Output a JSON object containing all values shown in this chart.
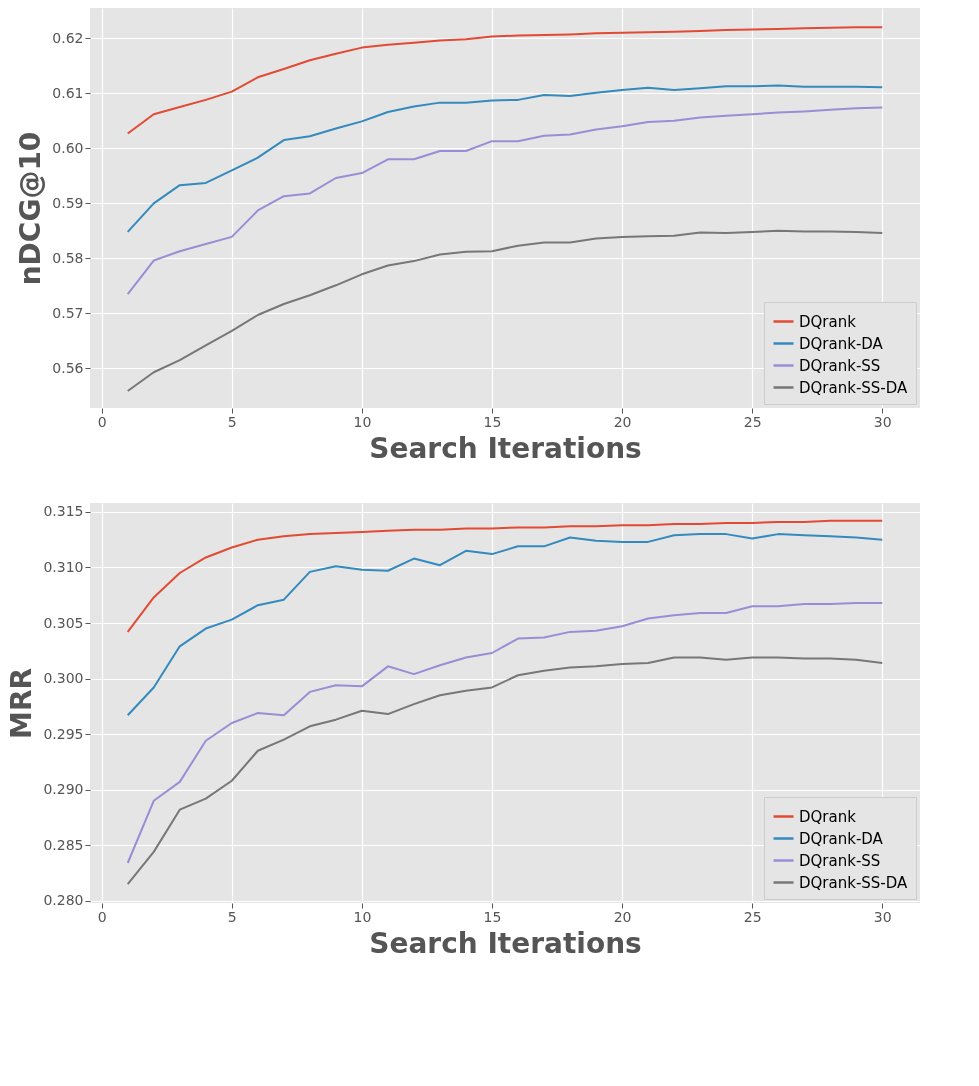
{
  "chart_data": [
    {
      "type": "line",
      "ylabel": "nDCG@10",
      "xlabel": "Search Iterations",
      "legend": "bottom right",
      "grid": true,
      "line_style": "solid",
      "x": [
        1,
        2,
        3,
        4,
        5,
        6,
        7,
        8,
        9,
        10,
        11,
        12,
        13,
        14,
        15,
        16,
        17,
        18,
        19,
        20,
        21,
        22,
        23,
        24,
        25,
        26,
        27,
        28,
        29,
        30
      ],
      "xlim": [
        -0.45,
        31.45
      ],
      "xticks": [
        0,
        5,
        10,
        15,
        20,
        25,
        30
      ],
      "ylim": [
        0.5528,
        0.6255
      ],
      "yticks": [
        {
          "value": 0.56,
          "label": "0.56"
        },
        {
          "value": 0.57,
          "label": "0.57"
        },
        {
          "value": 0.58,
          "label": "0.58"
        },
        {
          "value": 0.59,
          "label": "0.59"
        },
        {
          "value": 0.6,
          "label": "0.60"
        },
        {
          "value": 0.61,
          "label": "0.61"
        },
        {
          "value": 0.62,
          "label": "0.62"
        }
      ],
      "series": [
        {
          "name": "DQrank",
          "color": "#e24a33",
          "values": [
            0.6027,
            0.6062,
            0.6075,
            0.6088,
            0.6103,
            0.6129,
            0.6144,
            0.616,
            0.6172,
            0.6183,
            0.6188,
            0.6192,
            0.6196,
            0.6198,
            0.6203,
            0.6205,
            0.6206,
            0.6207,
            0.6209,
            0.621,
            0.6211,
            0.6212,
            0.6213,
            0.6215,
            0.6216,
            0.6217,
            0.6218,
            0.6219,
            0.622,
            0.622
          ]
        },
        {
          "name": "DQrank-DA",
          "color": "#348abd",
          "values": [
            0.5848,
            0.59,
            0.5933,
            0.5937,
            0.596,
            0.5983,
            0.6015,
            0.6022,
            0.6036,
            0.6049,
            0.6066,
            0.6076,
            0.6083,
            0.6083,
            0.6087,
            0.6088,
            0.6097,
            0.6095,
            0.6101,
            0.6106,
            0.611,
            0.6106,
            0.6109,
            0.6113,
            0.6113,
            0.6114,
            0.6112,
            0.6112,
            0.6112,
            0.6111
          ]
        },
        {
          "name": "DQrank-SS",
          "color": "#988ed5",
          "values": [
            0.5735,
            0.5796,
            0.5813,
            0.5826,
            0.5839,
            0.5887,
            0.5913,
            0.5918,
            0.5946,
            0.5955,
            0.598,
            0.598,
            0.5995,
            0.5995,
            0.6013,
            0.6013,
            0.6023,
            0.6025,
            0.6034,
            0.604,
            0.6048,
            0.605,
            0.6056,
            0.6059,
            0.6062,
            0.6065,
            0.6067,
            0.607,
            0.6073,
            0.6074
          ]
        },
        {
          "name": "DQrank-SS-DA",
          "color": "#777777",
          "values": [
            0.5559,
            0.5593,
            0.5615,
            0.5642,
            0.5668,
            0.5697,
            0.5717,
            0.5733,
            0.5751,
            0.5771,
            0.5787,
            0.5795,
            0.5807,
            0.5812,
            0.5813,
            0.5823,
            0.5829,
            0.5829,
            0.5836,
            0.5839,
            0.584,
            0.5841,
            0.5847,
            0.5846,
            0.5848,
            0.585,
            0.5849,
            0.5849,
            0.5848,
            0.5846
          ]
        }
      ]
    },
    {
      "type": "line",
      "ylabel": "MRR",
      "xlabel": "Search Iterations",
      "legend": "bottom right",
      "grid": true,
      "line_style": "solid",
      "x": [
        1,
        2,
        3,
        4,
        5,
        6,
        7,
        8,
        9,
        10,
        11,
        12,
        13,
        14,
        15,
        16,
        17,
        18,
        19,
        20,
        21,
        22,
        23,
        24,
        25,
        26,
        27,
        28,
        29,
        30
      ],
      "xlim": [
        -0.45,
        31.45
      ],
      "xticks": [
        0,
        5,
        10,
        15,
        20,
        25,
        30
      ],
      "ylim": [
        0.2798,
        0.3158
      ],
      "yticks": [
        {
          "value": 0.28,
          "label": "0.280"
        },
        {
          "value": 0.285,
          "label": "0.285"
        },
        {
          "value": 0.29,
          "label": "0.290"
        },
        {
          "value": 0.295,
          "label": "0.295"
        },
        {
          "value": 0.3,
          "label": "0.300"
        },
        {
          "value": 0.305,
          "label": "0.305"
        },
        {
          "value": 0.31,
          "label": "0.310"
        },
        {
          "value": 0.315,
          "label": "0.315"
        }
      ],
      "series": [
        {
          "name": "DQrank",
          "color": "#e24a33",
          "values": [
            0.3042,
            0.3073,
            0.3095,
            0.3109,
            0.3118,
            0.3125,
            0.3128,
            0.313,
            0.3131,
            0.3132,
            0.3133,
            0.3134,
            0.3134,
            0.3135,
            0.3135,
            0.3136,
            0.3136,
            0.3137,
            0.3137,
            0.3138,
            0.3138,
            0.3139,
            0.3139,
            0.314,
            0.314,
            0.3141,
            0.3141,
            0.3142,
            0.3142,
            0.3142
          ]
        },
        {
          "name": "DQrank-DA",
          "color": "#348abd",
          "values": [
            0.2967,
            0.2992,
            0.3029,
            0.3045,
            0.3053,
            0.3066,
            0.3071,
            0.3096,
            0.3101,
            0.3098,
            0.3097,
            0.3108,
            0.3102,
            0.3115,
            0.3112,
            0.3119,
            0.3119,
            0.3127,
            0.3124,
            0.3123,
            0.3123,
            0.3129,
            0.313,
            0.313,
            0.3126,
            0.313,
            0.3129,
            0.3128,
            0.3127,
            0.3125
          ]
        },
        {
          "name": "DQrank-SS",
          "color": "#988ed5",
          "values": [
            0.2834,
            0.289,
            0.2907,
            0.2944,
            0.296,
            0.2969,
            0.2967,
            0.2988,
            0.2994,
            0.2993,
            0.3011,
            0.3004,
            0.3012,
            0.3019,
            0.3023,
            0.3036,
            0.3037,
            0.3042,
            0.3043,
            0.3047,
            0.3054,
            0.3057,
            0.3059,
            0.3059,
            0.3065,
            0.3065,
            0.3067,
            0.3067,
            0.3068,
            0.3068
          ]
        },
        {
          "name": "DQrank-SS-DA",
          "color": "#777777",
          "values": [
            0.2815,
            0.2844,
            0.2882,
            0.2892,
            0.2908,
            0.2935,
            0.2945,
            0.2957,
            0.2963,
            0.2971,
            0.2968,
            0.2977,
            0.2985,
            0.2989,
            0.2992,
            0.3003,
            0.3007,
            0.301,
            0.3011,
            0.3013,
            0.3014,
            0.3019,
            0.3019,
            0.3017,
            0.3019,
            0.3019,
            0.3018,
            0.3018,
            0.3017,
            0.3014
          ]
        }
      ]
    }
  ]
}
